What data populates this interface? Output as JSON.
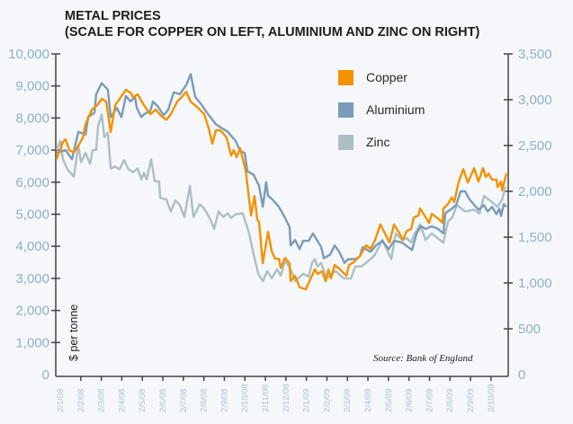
{
  "chart_data": {
    "type": "line",
    "title": "METAL PRICES",
    "subtitle": "(SCALE FOR COPPER ON LEFT, ALUMINIUM AND ZINC ON RIGHT)",
    "ylabel": "$ per tonne",
    "source": "Source: Bank of England",
    "x_unit": "months since 2/1/08",
    "xlim": [
      -0.22,
      21.84
    ],
    "x_tick_labels": [
      "2/1/08",
      "2/2/08",
      "2/3/08",
      "2/4/08",
      "2/5/08",
      "2/6/08",
      "2/7/08",
      "2/8/08",
      "2/9/08",
      "2/10/08",
      "2/11/08",
      "2/12/08",
      "2/1/09",
      "2/2/09",
      "2/3/09",
      "2/4/09",
      "2/5/09",
      "2/6/09",
      "2/7/09",
      "2/8/09",
      "2/9/09",
      "2/10/09"
    ],
    "y_left": {
      "ylim": [
        0,
        10000
      ],
      "ticks": [
        "0",
        "1,000",
        "2,000",
        "3,000",
        "4,000",
        "5,000",
        "6,000",
        "7,000",
        "8,000",
        "9,000",
        "10,000"
      ]
    },
    "y_right": {
      "ylim": [
        0,
        3500
      ],
      "ticks": [
        "0",
        "500",
        "1,000",
        "1,500",
        "2,000",
        "2,500",
        "3,000",
        "3,500"
      ]
    },
    "grid": false,
    "legend": {
      "placement": "top-right-inside",
      "entries": [
        "Copper",
        "Aluminium",
        "Zinc"
      ]
    },
    "series": [
      {
        "name": "Copper",
        "axis": "left",
        "color": "#f39200",
        "points": [
          [
            -0.18,
            6720
          ],
          [
            0.13,
            7250
          ],
          [
            0.26,
            7340
          ],
          [
            0.44,
            7000
          ],
          [
            0.66,
            6920
          ],
          [
            0.88,
            7140
          ],
          [
            1.1,
            7390
          ],
          [
            1.23,
            7810
          ],
          [
            1.54,
            8260
          ],
          [
            1.8,
            8400
          ],
          [
            2.02,
            8600
          ],
          [
            2.24,
            8510
          ],
          [
            2.46,
            7560
          ],
          [
            2.68,
            8400
          ],
          [
            2.98,
            8680
          ],
          [
            3.2,
            8880
          ],
          [
            3.42,
            8790
          ],
          [
            3.55,
            8650
          ],
          [
            3.77,
            8740
          ],
          [
            4.08,
            8400
          ],
          [
            4.39,
            8120
          ],
          [
            4.65,
            8260
          ],
          [
            4.96,
            8040
          ],
          [
            5.18,
            7950
          ],
          [
            5.39,
            8120
          ],
          [
            5.7,
            8510
          ],
          [
            5.96,
            8680
          ],
          [
            6.14,
            8820
          ],
          [
            6.36,
            8510
          ],
          [
            6.71,
            8320
          ],
          [
            7.02,
            8120
          ],
          [
            7.24,
            7670
          ],
          [
            7.41,
            7200
          ],
          [
            7.59,
            7620
          ],
          [
            7.81,
            7620
          ],
          [
            8.11,
            7390
          ],
          [
            8.33,
            6830
          ],
          [
            8.46,
            7000
          ],
          [
            8.6,
            6780
          ],
          [
            8.77,
            7060
          ],
          [
            9.04,
            6360
          ],
          [
            9.3,
            4960
          ],
          [
            9.47,
            5570
          ],
          [
            9.61,
            4820
          ],
          [
            9.69,
            4760
          ],
          [
            9.87,
            3470
          ],
          [
            10.13,
            4450
          ],
          [
            10.31,
            3840
          ],
          [
            10.48,
            3610
          ],
          [
            10.66,
            3610
          ],
          [
            10.75,
            3330
          ],
          [
            10.96,
            3640
          ],
          [
            11.18,
            3470
          ],
          [
            11.23,
            2910
          ],
          [
            11.45,
            3080
          ],
          [
            11.67,
            2720
          ],
          [
            11.97,
            2660
          ],
          [
            12.41,
            3280
          ],
          [
            12.54,
            3140
          ],
          [
            12.76,
            3220
          ],
          [
            12.94,
            2910
          ],
          [
            13.07,
            3280
          ],
          [
            13.2,
            3000
          ],
          [
            13.38,
            3420
          ],
          [
            13.64,
            3280
          ],
          [
            13.95,
            3080
          ],
          [
            14.08,
            3420
          ],
          [
            14.3,
            3500
          ],
          [
            14.61,
            3700
          ],
          [
            14.91,
            4030
          ],
          [
            15.13,
            3920
          ],
          [
            15.35,
            4200
          ],
          [
            15.61,
            4680
          ],
          [
            15.83,
            4400
          ],
          [
            16.05,
            4120
          ],
          [
            16.27,
            4680
          ],
          [
            16.49,
            4450
          ],
          [
            16.71,
            4200
          ],
          [
            16.89,
            4480
          ],
          [
            17.11,
            4540
          ],
          [
            17.24,
            4900
          ],
          [
            17.46,
            4960
          ],
          [
            17.54,
            5180
          ],
          [
            17.76,
            4960
          ],
          [
            17.98,
            4730
          ],
          [
            18.11,
            5010
          ],
          [
            18.42,
            4870
          ],
          [
            18.64,
            4730
          ],
          [
            18.68,
            5180
          ],
          [
            18.9,
            5320
          ],
          [
            19.08,
            5520
          ],
          [
            19.21,
            5380
          ],
          [
            19.43,
            6020
          ],
          [
            19.65,
            6410
          ],
          [
            19.87,
            5990
          ],
          [
            20.18,
            6440
          ],
          [
            20.39,
            6020
          ],
          [
            20.61,
            6440
          ],
          [
            20.75,
            6160
          ],
          [
            20.88,
            6270
          ],
          [
            21.05,
            6080
          ],
          [
            21.27,
            6080
          ],
          [
            21.32,
            5850
          ],
          [
            21.49,
            6020
          ],
          [
            21.54,
            5740
          ],
          [
            21.75,
            6270
          ]
        ]
      },
      {
        "name": "Aluminium",
        "axis": "right",
        "color": "#7a9cb8",
        "points": [
          [
            -0.18,
            2420
          ],
          [
            0.26,
            2450
          ],
          [
            0.57,
            2350
          ],
          [
            0.88,
            2650
          ],
          [
            1.23,
            2620
          ],
          [
            1.36,
            2810
          ],
          [
            1.67,
            2860
          ],
          [
            1.75,
            3060
          ],
          [
            2.02,
            3180
          ],
          [
            2.32,
            3110
          ],
          [
            2.46,
            2810
          ],
          [
            2.76,
            2910
          ],
          [
            2.98,
            2810
          ],
          [
            3.2,
            3040
          ],
          [
            3.42,
            2980
          ],
          [
            3.64,
            3030
          ],
          [
            3.73,
            2910
          ],
          [
            3.95,
            2810
          ],
          [
            4.08,
            2840
          ],
          [
            4.39,
            2880
          ],
          [
            4.52,
            2980
          ],
          [
            4.74,
            2930
          ],
          [
            5.04,
            2830
          ],
          [
            5.26,
            2890
          ],
          [
            5.53,
            3080
          ],
          [
            5.83,
            3060
          ],
          [
            6.14,
            3160
          ],
          [
            6.36,
            3280
          ],
          [
            6.58,
            3030
          ],
          [
            6.84,
            2960
          ],
          [
            7.15,
            2860
          ],
          [
            7.59,
            2730
          ],
          [
            8.16,
            2650
          ],
          [
            8.55,
            2550
          ],
          [
            8.77,
            2440
          ],
          [
            8.99,
            2420
          ],
          [
            9.12,
            2220
          ],
          [
            9.43,
            2180
          ],
          [
            9.69,
            2060
          ],
          [
            9.87,
            1830
          ],
          [
            10.04,
            2100
          ],
          [
            10.13,
            1950
          ],
          [
            10.35,
            1910
          ],
          [
            10.66,
            1830
          ],
          [
            10.96,
            1710
          ],
          [
            11.18,
            1610
          ],
          [
            11.23,
            1410
          ],
          [
            11.45,
            1470
          ],
          [
            11.67,
            1370
          ],
          [
            11.84,
            1460
          ],
          [
            12.11,
            1460
          ],
          [
            12.32,
            1540
          ],
          [
            12.54,
            1460
          ],
          [
            12.72,
            1390
          ],
          [
            12.85,
            1270
          ],
          [
            13.16,
            1310
          ],
          [
            13.38,
            1410
          ],
          [
            13.6,
            1340
          ],
          [
            13.86,
            1220
          ],
          [
            14.04,
            1260
          ],
          [
            14.39,
            1260
          ],
          [
            14.61,
            1290
          ],
          [
            14.74,
            1390
          ],
          [
            15.13,
            1340
          ],
          [
            15.39,
            1410
          ],
          [
            15.7,
            1460
          ],
          [
            16.01,
            1370
          ],
          [
            16.27,
            1460
          ],
          [
            16.67,
            1440
          ],
          [
            17.15,
            1360
          ],
          [
            17.37,
            1540
          ],
          [
            17.59,
            1620
          ],
          [
            17.81,
            1590
          ],
          [
            18.11,
            1620
          ],
          [
            18.42,
            1590
          ],
          [
            18.68,
            1540
          ],
          [
            18.77,
            1760
          ],
          [
            19.08,
            1810
          ],
          [
            19.3,
            1850
          ],
          [
            19.52,
            2000
          ],
          [
            19.74,
            2000
          ],
          [
            19.96,
            1910
          ],
          [
            20.39,
            1800
          ],
          [
            20.66,
            1850
          ],
          [
            20.83,
            1780
          ],
          [
            21.05,
            1830
          ],
          [
            21.27,
            1750
          ],
          [
            21.4,
            1810
          ],
          [
            21.49,
            1730
          ],
          [
            21.62,
            1860
          ],
          [
            21.75,
            1830
          ]
        ]
      },
      {
        "name": "Zinc",
        "axis": "right",
        "color": "#adbfc3",
        "points": [
          [
            -0.18,
            2450
          ],
          [
            0.0,
            2550
          ],
          [
            0.13,
            2350
          ],
          [
            0.35,
            2240
          ],
          [
            0.66,
            2160
          ],
          [
            0.88,
            2500
          ],
          [
            1.01,
            2320
          ],
          [
            1.23,
            2420
          ],
          [
            1.45,
            2300
          ],
          [
            1.58,
            2450
          ],
          [
            1.75,
            2450
          ],
          [
            1.84,
            2710
          ],
          [
            2.02,
            2840
          ],
          [
            2.15,
            2590
          ],
          [
            2.32,
            2640
          ],
          [
            2.46,
            2250
          ],
          [
            2.68,
            2270
          ],
          [
            2.89,
            2240
          ],
          [
            3.11,
            2340
          ],
          [
            3.33,
            2240
          ],
          [
            3.55,
            2210
          ],
          [
            3.77,
            2250
          ],
          [
            3.95,
            2130
          ],
          [
            4.08,
            2200
          ],
          [
            4.21,
            2130
          ],
          [
            4.43,
            2350
          ],
          [
            4.61,
            2110
          ],
          [
            4.82,
            2110
          ],
          [
            4.87,
            1930
          ],
          [
            5.18,
            1910
          ],
          [
            5.39,
            1780
          ],
          [
            5.61,
            1900
          ],
          [
            5.83,
            1850
          ],
          [
            6.05,
            1720
          ],
          [
            6.32,
            2060
          ],
          [
            6.49,
            1720
          ],
          [
            6.8,
            1860
          ],
          [
            7.02,
            1810
          ],
          [
            7.28,
            1710
          ],
          [
            7.5,
            1590
          ],
          [
            7.72,
            1780
          ],
          [
            7.94,
            1720
          ],
          [
            8.16,
            1760
          ],
          [
            8.33,
            1710
          ],
          [
            8.55,
            1750
          ],
          [
            8.9,
            1760
          ],
          [
            9.21,
            1540
          ],
          [
            9.43,
            1310
          ],
          [
            9.65,
            1100
          ],
          [
            9.87,
            1020
          ],
          [
            10.09,
            1130
          ],
          [
            10.31,
            1050
          ],
          [
            10.57,
            1150
          ],
          [
            10.75,
            1080
          ],
          [
            10.96,
            1240
          ],
          [
            11.23,
            1150
          ],
          [
            11.45,
            1020
          ],
          [
            11.84,
            1100
          ],
          [
            12.11,
            1070
          ],
          [
            12.28,
            1220
          ],
          [
            12.41,
            1260
          ],
          [
            12.54,
            1180
          ],
          [
            12.72,
            1220
          ],
          [
            12.98,
            1050
          ],
          [
            13.42,
            1130
          ],
          [
            13.82,
            1050
          ],
          [
            14.17,
            1050
          ],
          [
            14.39,
            1180
          ],
          [
            14.69,
            1180
          ],
          [
            14.91,
            1220
          ],
          [
            15.13,
            1260
          ],
          [
            15.35,
            1310
          ],
          [
            15.7,
            1470
          ],
          [
            16.14,
            1260
          ],
          [
            16.36,
            1540
          ],
          [
            16.67,
            1470
          ],
          [
            16.89,
            1490
          ],
          [
            17.11,
            1440
          ],
          [
            17.24,
            1520
          ],
          [
            17.54,
            1640
          ],
          [
            17.81,
            1470
          ],
          [
            18.11,
            1540
          ],
          [
            18.68,
            1440
          ],
          [
            18.9,
            1670
          ],
          [
            19.12,
            1720
          ],
          [
            19.34,
            1850
          ],
          [
            19.74,
            1780
          ],
          [
            20.18,
            1800
          ],
          [
            20.44,
            1760
          ],
          [
            20.66,
            1950
          ],
          [
            20.96,
            1900
          ],
          [
            21.32,
            1830
          ],
          [
            21.54,
            1910
          ],
          [
            21.71,
            2050
          ]
        ]
      }
    ]
  }
}
